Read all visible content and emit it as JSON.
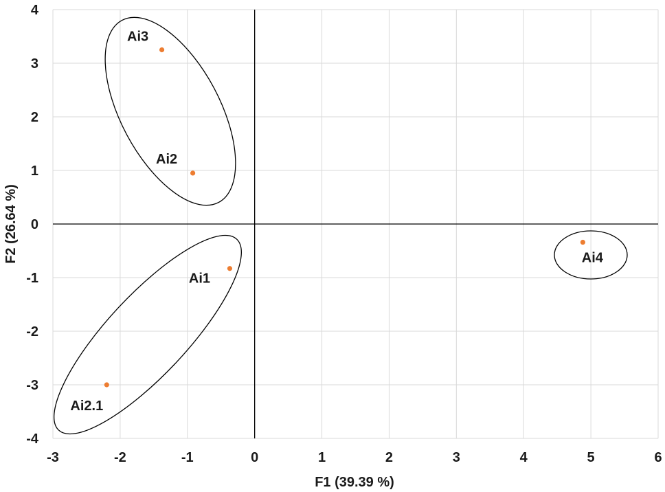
{
  "chart_data": {
    "type": "scatter",
    "title": "",
    "xlabel": "F1 (39.39 %)",
    "ylabel": "F2 (26.64 %)",
    "xlim": [
      -3,
      6
    ],
    "ylim": [
      -4,
      4
    ],
    "xticks": [
      "-3",
      "-2",
      "-1",
      "0",
      "1",
      "2",
      "3",
      "4",
      "5",
      "6"
    ],
    "yticks": [
      "4",
      "3",
      "2",
      "1",
      "0",
      "-1",
      "-2",
      "-3",
      "-4"
    ],
    "grid": true,
    "point_color": "#ED7D31",
    "points": [
      {
        "label": "Ai1",
        "x": -0.37,
        "y": -0.83
      },
      {
        "label": "Ai2",
        "x": -0.92,
        "y": 0.95
      },
      {
        "label": "Ai2.1",
        "x": -2.2,
        "y": -3.0
      },
      {
        "label": "Ai3",
        "x": -1.38,
        "y": 3.25
      },
      {
        "label": "Ai4",
        "x": 4.88,
        "y": -0.34
      }
    ],
    "groups": [
      {
        "members": [
          "Ai2",
          "Ai3"
        ]
      },
      {
        "members": [
          "Ai1",
          "Ai2.1"
        ]
      },
      {
        "members": [
          "Ai4"
        ]
      }
    ]
  }
}
